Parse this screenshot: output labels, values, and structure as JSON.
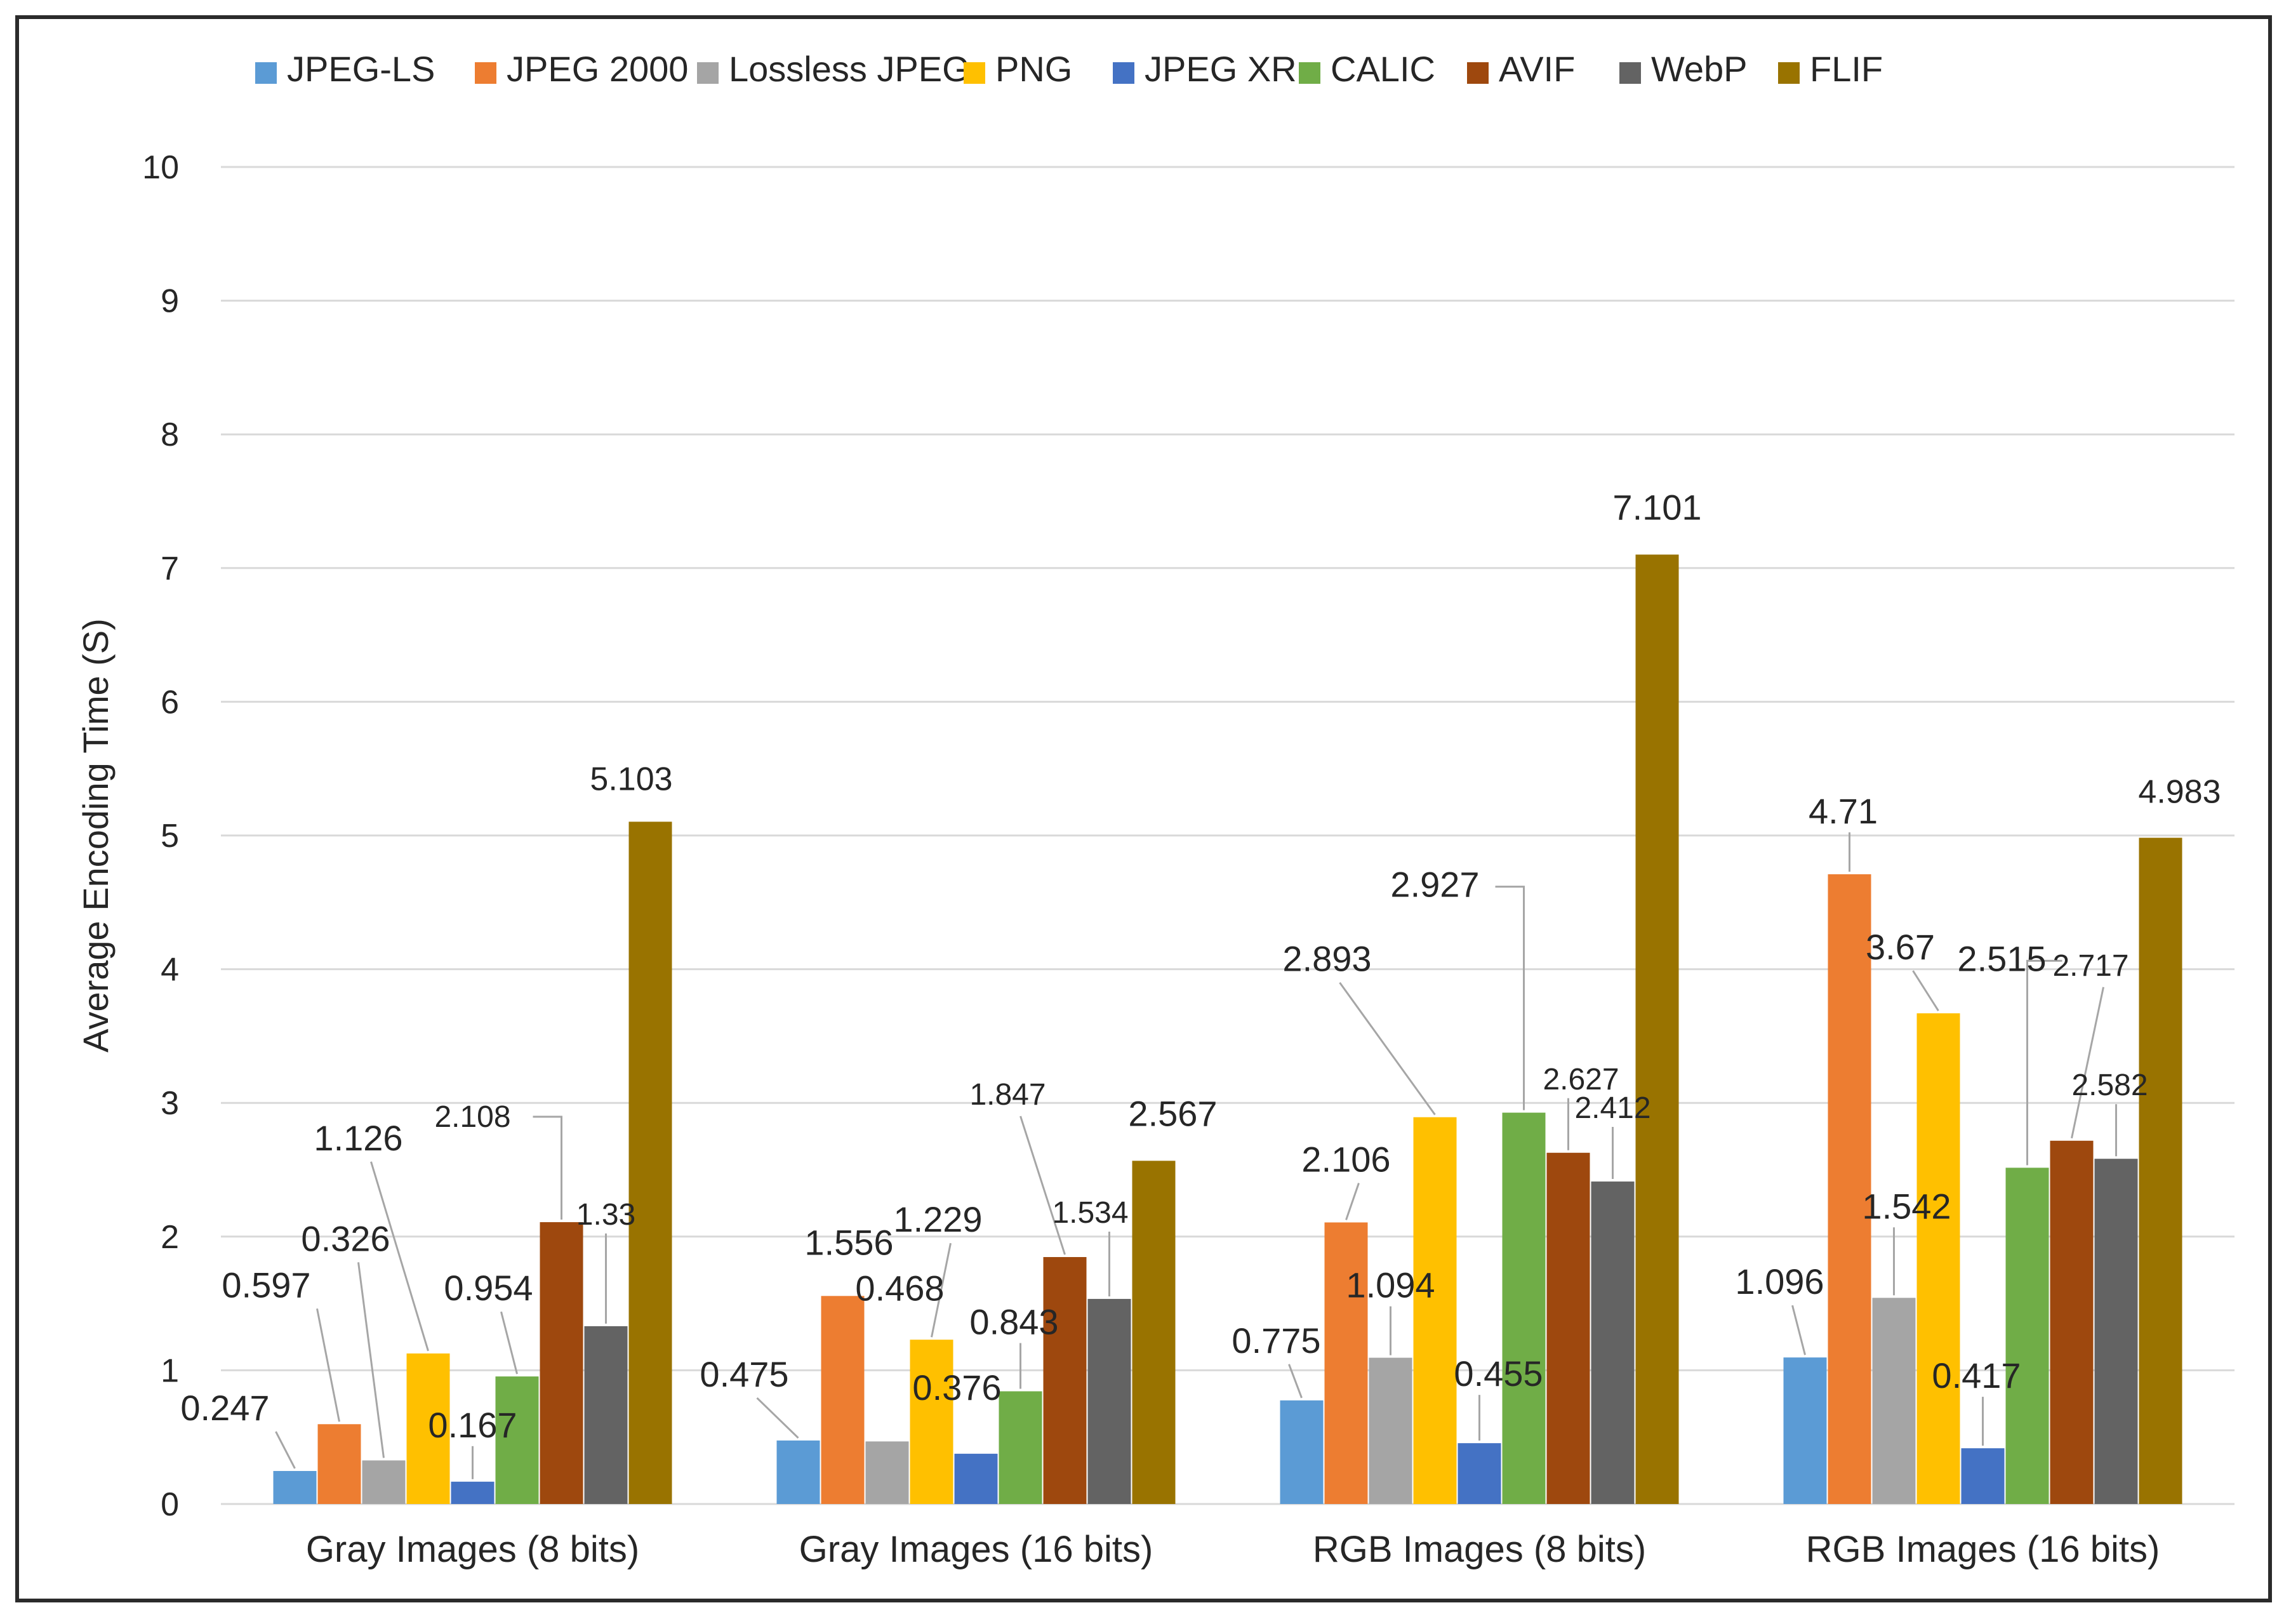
{
  "chart_data": {
    "type": "bar",
    "title": "",
    "xlabel": "",
    "ylabel": "Average Encoding Time (S)",
    "ylim": [
      0,
      10
    ],
    "yticks": [
      "0",
      "1",
      "2",
      "3",
      "4",
      "5",
      "6",
      "7",
      "8",
      "9",
      "10"
    ],
    "grid": true,
    "legend_position": "top",
    "categories": [
      "Gray Images (8 bits)",
      "Gray Images (16 bits)",
      "RGB Images (8 bits)",
      "RGB Images (16 bits)"
    ],
    "series": [
      {
        "name": "JPEG-LS",
        "color": "#5B9BD5",
        "values": [
          0.247,
          0.475,
          0.775,
          1.096
        ],
        "labels": [
          "0.247",
          "0.475",
          "0.775",
          "1.096"
        ]
      },
      {
        "name": "JPEG 2000",
        "color": "#ED7D31",
        "values": [
          0.597,
          1.556,
          2.106,
          4.71
        ],
        "labels": [
          "0.597",
          "1.556",
          "2.106",
          "4.71"
        ]
      },
      {
        "name": "Lossless JPEG",
        "color": "#A5A5A5",
        "values": [
          0.326,
          0.468,
          1.094,
          1.542
        ],
        "labels": [
          "0.326",
          "0.468",
          "1.094",
          "1.542"
        ]
      },
      {
        "name": "PNG",
        "color": "#FFC000",
        "values": [
          1.126,
          1.229,
          2.893,
          3.67
        ],
        "labels": [
          "1.126",
          "1.229",
          "2.893",
          "3.67"
        ]
      },
      {
        "name": "JPEG XR",
        "color": "#4472C4",
        "values": [
          0.167,
          0.376,
          0.455,
          0.417
        ],
        "labels": [
          "0.167",
          "0.376",
          "0.455",
          "0.417"
        ]
      },
      {
        "name": "CALIC",
        "color": "#70AD47",
        "values": [
          0.954,
          0.843,
          2.927,
          2.515
        ],
        "labels": [
          "0.954",
          "0.843",
          "2.927",
          "2.515"
        ]
      },
      {
        "name": "AVIF",
        "color": "#9E480E",
        "values": [
          2.108,
          1.847,
          2.627,
          2.717
        ],
        "labels": [
          "2.108",
          "1.847",
          "2.627",
          "2.717"
        ]
      },
      {
        "name": "WebP",
        "color": "#636363",
        "values": [
          1.33,
          1.534,
          2.412,
          2.582
        ],
        "labels": [
          "1.33",
          "1.534",
          "2.412",
          "2.582"
        ]
      },
      {
        "name": "FLIF",
        "color": "#997300",
        "values": [
          5.103,
          2.567,
          7.101,
          4.983
        ],
        "labels": [
          "5.103",
          "2.567",
          "7.101",
          "4.983"
        ]
      }
    ]
  }
}
